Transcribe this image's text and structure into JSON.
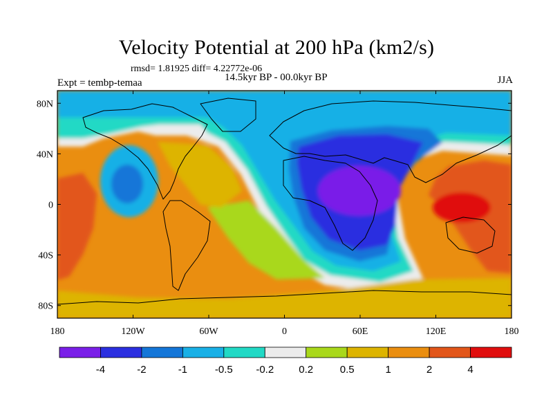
{
  "header": {
    "title": "Velocity Potential at 200 hPa (km2/s)",
    "stats": "rmsd= 1.81925 diff= 4.22772e-06",
    "period": "14.5kyr BP - 00.0kyr BP",
    "experiment": "Expt = tembp-temaa",
    "season": "JJA"
  },
  "map": {
    "lon_range": [
      -180,
      180
    ],
    "lat_range": [
      -90,
      90
    ],
    "x_ticks": [
      {
        "lon": -180,
        "label": "180"
      },
      {
        "lon": -120,
        "label": "120W"
      },
      {
        "lon": -60,
        "label": "60W"
      },
      {
        "lon": 0,
        "label": "0"
      },
      {
        "lon": 60,
        "label": "60E"
      },
      {
        "lon": 120,
        "label": "120E"
      },
      {
        "lon": 180,
        "label": "180"
      }
    ],
    "y_ticks": [
      {
        "lat": 80,
        "label": "80N"
      },
      {
        "lat": 40,
        "label": "40N"
      },
      {
        "lat": 0,
        "label": "0"
      },
      {
        "lat": -40,
        "label": "40S"
      },
      {
        "lat": -80,
        "label": "80S"
      }
    ]
  },
  "colorbar": {
    "colors": [
      "#7a1fe8",
      "#2b2fe0",
      "#1476d8",
      "#19b0e6",
      "#21d9c5",
      "#ececec",
      "#a9d81b",
      "#ddb400",
      "#ea8e10",
      "#e2561a",
      "#e00e0e"
    ],
    "levels": [
      "-4",
      "-2",
      "-1",
      "-0.5",
      "-0.2",
      "0.2",
      "0.5",
      "1",
      "2",
      "4"
    ]
  }
}
